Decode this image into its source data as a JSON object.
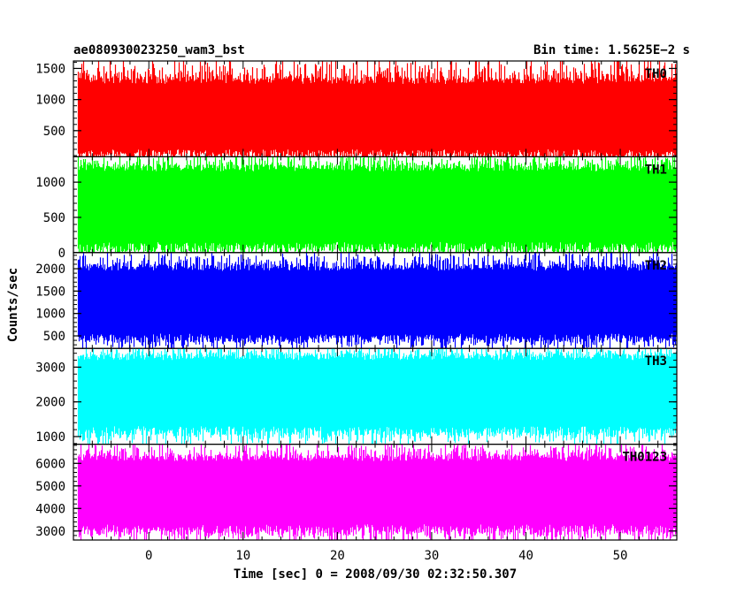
{
  "header": {
    "left_title": "ae080930023250_wam3_bst",
    "right_title": "Bin time: 1.5625E−2 s"
  },
  "axes": {
    "ylabel": "Counts/sec",
    "xlabel": "Time [sec] 0 = 2008/09/30 02:32:50.307",
    "xlim": [
      -8,
      56
    ],
    "xticks_major": [
      0,
      10,
      20,
      30,
      40,
      50
    ],
    "xticks_minor_step": 2
  },
  "chart_data": {
    "type": "line",
    "bin_time_s": 0.015625,
    "x_range": [
      -8,
      56
    ],
    "panels": [
      {
        "name": "TH0",
        "color": "#ff0000",
        "ylim": [
          80,
          1620
        ],
        "yticks": [
          500,
          1000,
          1500
        ],
        "minor_step": 100,
        "band": {
          "mean": 700,
          "low": 200,
          "high": 1250,
          "min_spike": 120,
          "max_spike": 1600
        }
      },
      {
        "name": "TH1",
        "color": "#00ff00",
        "ylim": [
          0,
          1360
        ],
        "yticks": [
          0,
          500,
          1000
        ],
        "minor_step": 100,
        "band": {
          "mean": 650,
          "low": 150,
          "high": 1150,
          "min_spike": 40,
          "max_spike": 1340
        }
      },
      {
        "name": "TH2",
        "color": "#0000ff",
        "ylim": [
          220,
          2360
        ],
        "yticks": [
          500,
          1000,
          1500,
          2000
        ],
        "minor_step": 100,
        "band": {
          "mean": 1200,
          "low": 550,
          "high": 1950,
          "min_spike": 300,
          "max_spike": 2300
        }
      },
      {
        "name": "TH3",
        "color": "#00ffff",
        "ylim": [
          780,
          3540
        ],
        "yticks": [
          1000,
          2000,
          3000
        ],
        "minor_step": 200,
        "band": {
          "mean": 2200,
          "low": 1300,
          "high": 3200,
          "min_spike": 900,
          "max_spike": 3500
        }
      },
      {
        "name": "TH0123",
        "color": "#ff00ff",
        "ylim": [
          2600,
          6850
        ],
        "yticks": [
          3000,
          4000,
          5000,
          6000
        ],
        "minor_step": 200,
        "band": {
          "mean": 4800,
          "low": 3300,
          "high": 6100,
          "min_spike": 2700,
          "max_spike": 6800
        }
      }
    ]
  }
}
